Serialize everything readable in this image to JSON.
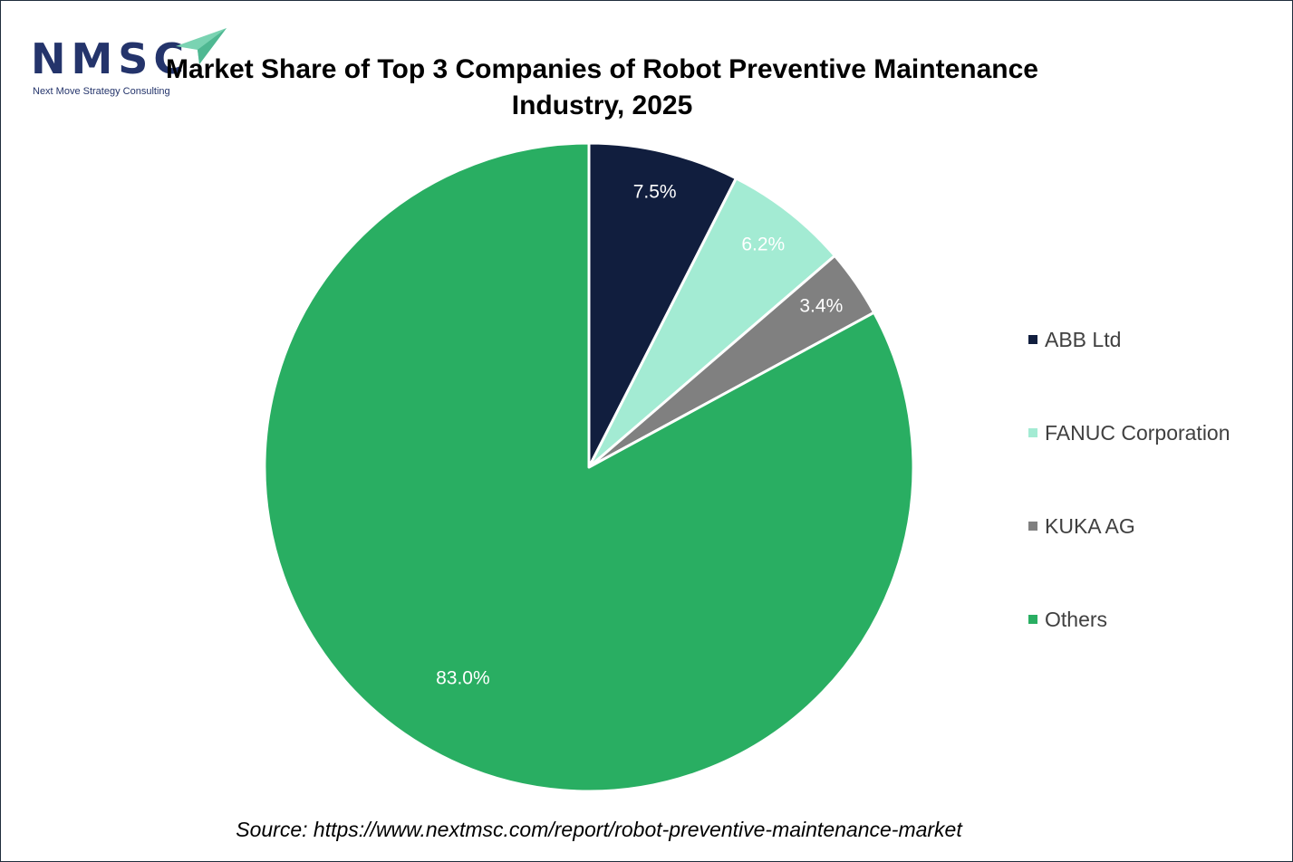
{
  "logo": {
    "name": "NMSC",
    "tagline": "Next Move Strategy Consulting"
  },
  "title_line1": "Market Share of Top 3 Companies of Robot Preventive Maintenance",
  "title_line2": "Industry, 2025",
  "source": "Source: https://www.nextmsc.com/report/robot-preventive-maintenance-market",
  "chart_data": {
    "type": "pie",
    "title": "Market Share of Top 3 Companies of Robot Preventive Maintenance Industry, 2025",
    "categories": [
      "ABB Ltd",
      "FANUC Corporation",
      "KUKA AG",
      "Others"
    ],
    "values": [
      7.5,
      6.2,
      3.4,
      83.0
    ],
    "labels": [
      "7.5%",
      "6.2%",
      "3.4%",
      "83.0%"
    ],
    "colors": [
      "#111e3e",
      "#a3ebd3",
      "#808080",
      "#29ae62"
    ],
    "label_colors": [
      "#ffffff",
      "#ffffff",
      "#ffffff",
      "#ffffff"
    ],
    "legend_position": "right"
  }
}
